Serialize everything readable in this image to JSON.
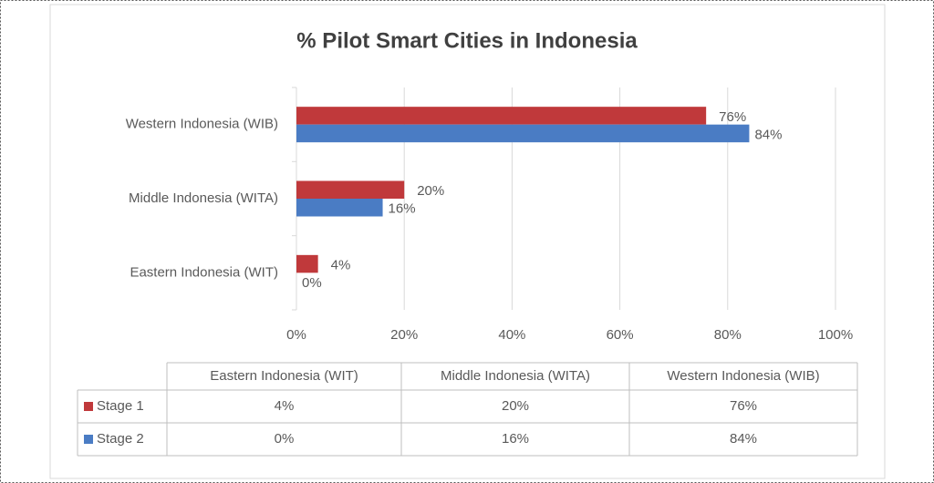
{
  "chart_data": {
    "type": "bar",
    "orientation": "horizontal",
    "title": "% Pilot Smart Cities in Indonesia",
    "categories": [
      "Eastern Indonesia (WIT)",
      "Middle Indonesia (WITA)",
      "Western Indonesia (WIB)"
    ],
    "series": [
      {
        "name": "Stage 1",
        "color": "#c0393b",
        "values": [
          4,
          20,
          76
        ],
        "value_labels": [
          "4%",
          "20%",
          "76%"
        ]
      },
      {
        "name": "Stage 2",
        "color": "#4a7cc4",
        "values": [
          0,
          16,
          84
        ],
        "value_labels": [
          "0%",
          "16%",
          "84%"
        ]
      }
    ],
    "xlim": [
      0,
      100
    ],
    "xticks": [
      {
        "value": 0,
        "label": "0%"
      },
      {
        "value": 20,
        "label": "20%"
      },
      {
        "value": 40,
        "label": "40%"
      },
      {
        "value": 60,
        "label": "60%"
      },
      {
        "value": 80,
        "label": "80%"
      },
      {
        "value": 100,
        "label": "100%"
      }
    ],
    "grid": true,
    "data_table": true
  }
}
